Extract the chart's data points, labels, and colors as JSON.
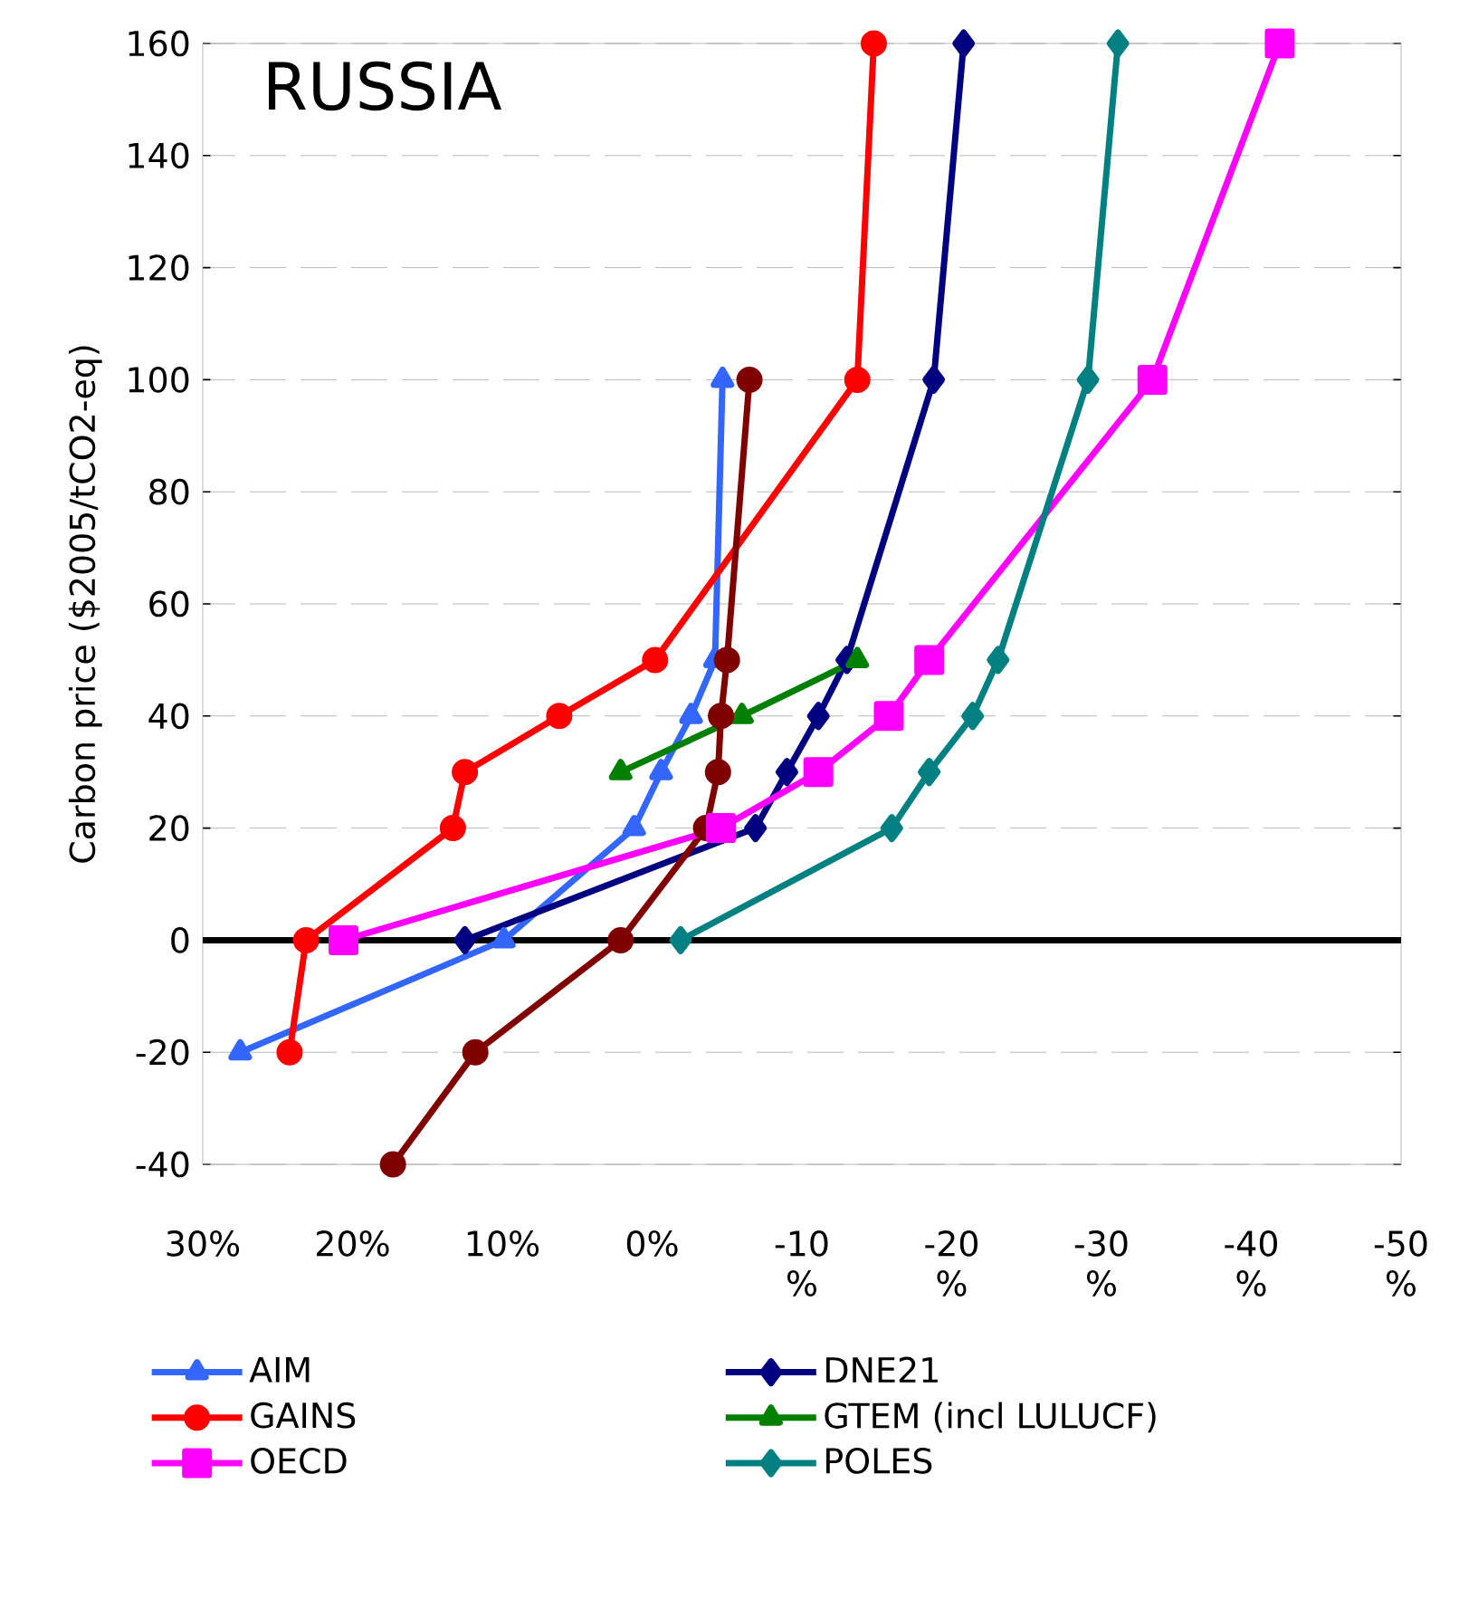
{
  "chart_data": {
    "type": "line",
    "title": "RUSSIA",
    "ylabel": "Carbon price ($2005/tCO2-eq)",
    "xlim": [
      30,
      -50
    ],
    "ylim": [
      -40,
      160
    ],
    "xticks": [
      {
        "value": 30,
        "label": "30%"
      },
      {
        "value": 20,
        "label": "20%"
      },
      {
        "value": 10,
        "label": "10%"
      },
      {
        "value": 0,
        "label": "0%"
      },
      {
        "value": -10,
        "label": "-10 %"
      },
      {
        "value": -20,
        "label": "-20 %"
      },
      {
        "value": -30,
        "label": "-30 %"
      },
      {
        "value": -40,
        "label": "-40 %"
      },
      {
        "value": -50,
        "label": "-50 %"
      }
    ],
    "yticks": [
      -40,
      -20,
      0,
      20,
      40,
      60,
      80,
      100,
      120,
      140,
      160
    ],
    "grid": "y",
    "legend": "bottom",
    "line_style": "solid",
    "ref_lines": [
      {
        "axis": "y",
        "value": 0,
        "color": "#000000"
      }
    ],
    "series": [
      {
        "name": "AIM",
        "color": "#3366ff",
        "marker": "triangle",
        "x": [
          27.5,
          9.9,
          1.2,
          -0.6,
          -2.6,
          -4.2,
          -4.7
        ],
        "values": [
          -20,
          0,
          20,
          30,
          40,
          50,
          100
        ]
      },
      {
        "name": "DNE21",
        "color": "#000080",
        "marker": "diamond",
        "x": [
          12.5,
          -6.9,
          -9.0,
          -11.1,
          -13.0,
          -18.8,
          -20.8
        ],
        "values": [
          0,
          20,
          30,
          40,
          50,
          100,
          160
        ]
      },
      {
        "name": "GAINS",
        "color": "#ff0000",
        "marker": "circle",
        "x": [
          24.2,
          23.1,
          13.3,
          12.5,
          6.2,
          -0.2,
          -13.7,
          -14.8
        ],
        "values": [
          -20,
          0,
          20,
          30,
          40,
          50,
          100,
          160
        ]
      },
      {
        "name": "GTEM (incl LULUCF)",
        "color": "#008000",
        "marker": "triangle",
        "x": [
          2.1,
          -6.0,
          -13.7
        ],
        "values": [
          30,
          40,
          50
        ]
      },
      {
        "color": "#800000",
        "marker": "circle",
        "x": [
          17.3,
          11.8,
          2.1,
          -3.6,
          -4.4,
          -4.6,
          -5.0,
          -6.5
        ],
        "values": [
          -40,
          -20,
          0,
          20,
          30,
          40,
          50,
          100
        ]
      },
      {
        "name": "OECD",
        "color": "#ff00ff",
        "marker": "square",
        "x": [
          20.6,
          -4.6,
          -11.1,
          -15.8,
          -18.5,
          -33.4,
          -41.9
        ],
        "values": [
          0,
          20,
          30,
          40,
          50,
          100,
          160
        ]
      },
      {
        "name": "POLES",
        "color": "#008080",
        "marker": "diamond",
        "x": [
          -1.9,
          -16.0,
          -18.5,
          -21.4,
          -23.1,
          -29.1,
          -31.1
        ],
        "values": [
          0,
          20,
          30,
          40,
          50,
          100,
          160
        ]
      }
    ]
  }
}
